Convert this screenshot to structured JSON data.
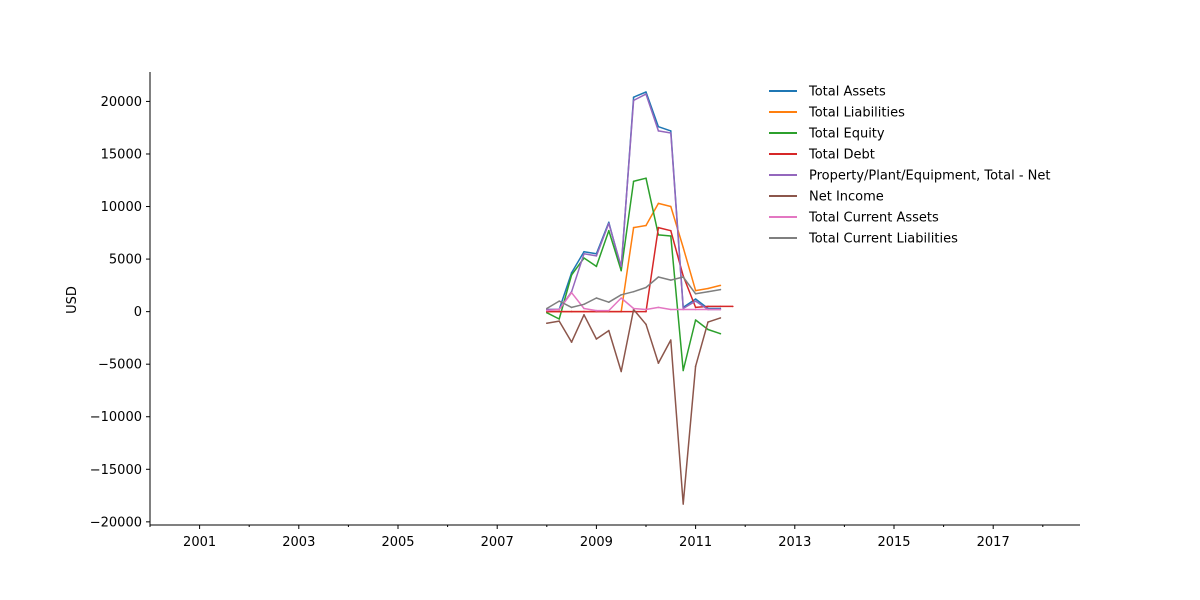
{
  "chart_data": {
    "type": "line",
    "title": "",
    "xlabel": "",
    "ylabel": "USD",
    "xlim": [
      2000.0,
      2018.75
    ],
    "ylim": [
      -20300,
      22800
    ],
    "x_ticks": [
      2001,
      2003,
      2005,
      2007,
      2009,
      2011,
      2013,
      2015,
      2017
    ],
    "y_ticks": [
      -20000,
      -15000,
      -10000,
      -5000,
      0,
      5000,
      10000,
      15000,
      20000
    ],
    "grid": false,
    "legend_position": "top-right",
    "series": [
      {
        "name": "Total Assets",
        "color": "#1f77b4",
        "x": [
          2008.0,
          2008.25,
          2008.5,
          2008.75,
          2009.0,
          2009.25,
          2009.5,
          2009.75,
          2010.0,
          2010.25,
          2010.5,
          2010.75,
          2011.0,
          2011.25,
          2011.5
        ],
        "y": [
          200,
          200,
          3700,
          5700,
          5500,
          8500,
          4100,
          20400,
          20900,
          17600,
          17200,
          400,
          1200,
          300,
          300
        ]
      },
      {
        "name": "Total Liabilities",
        "color": "#ff7f0e",
        "x": [
          2008.0,
          2008.25,
          2008.5,
          2008.75,
          2009.0,
          2009.25,
          2009.5,
          2009.75,
          2010.0,
          2010.25,
          2010.5,
          2010.75,
          2011.0,
          2011.25,
          2011.5
        ],
        "y": [
          0,
          0,
          0,
          0,
          0,
          0,
          0,
          8000,
          8200,
          10300,
          10000,
          6100,
          2000,
          2200,
          2500
        ]
      },
      {
        "name": "Total Equity",
        "color": "#2ca02c",
        "x": [
          2008.0,
          2008.25,
          2008.5,
          2008.75,
          2009.0,
          2009.25,
          2009.5,
          2009.75,
          2010.0,
          2010.25,
          2010.5,
          2010.75,
          2011.0,
          2011.25,
          2011.5
        ],
        "y": [
          -100,
          -700,
          3500,
          5100,
          4300,
          7700,
          3900,
          12400,
          12700,
          7300,
          7200,
          -5600,
          -800,
          -1700,
          -2100
        ]
      },
      {
        "name": "Total Debt",
        "color": "#d62728",
        "x": [
          2008.0,
          2008.25,
          2008.5,
          2008.75,
          2009.0,
          2009.25,
          2009.5,
          2009.75,
          2010.0,
          2010.25,
          2010.5,
          2010.75,
          2011.0,
          2011.25,
          2011.5,
          2011.75
        ],
        "y": [
          0,
          0,
          0,
          0,
          0,
          0,
          0,
          0,
          0,
          8000,
          7700,
          3400,
          400,
          500,
          500,
          500
        ]
      },
      {
        "name": "Property/Plant/Equipment, Total - Net",
        "color": "#9467bd",
        "x": [
          2008.0,
          2008.25,
          2008.5,
          2008.75,
          2009.0,
          2009.25,
          2009.5,
          2009.75,
          2010.0,
          2010.25,
          2010.5,
          2010.75,
          2011.0,
          2011.25,
          2011.5
        ],
        "y": [
          200,
          200,
          1900,
          5500,
          5300,
          8400,
          4300,
          20100,
          20700,
          17200,
          17000,
          300,
          1000,
          200,
          200
        ]
      },
      {
        "name": "Net Income",
        "color": "#8c564b",
        "x": [
          2008.0,
          2008.25,
          2008.5,
          2008.75,
          2009.0,
          2009.25,
          2009.5,
          2009.75,
          2010.0,
          2010.25,
          2010.5,
          2010.75,
          2011.0,
          2011.25,
          2011.5
        ],
        "y": [
          -1100,
          -900,
          -2900,
          -300,
          -2600,
          -1800,
          -5700,
          200,
          -1200,
          -4900,
          -2700,
          -18300,
          -5200,
          -1000,
          -600
        ]
      },
      {
        "name": "Total Current Assets",
        "color": "#e377c2",
        "x": [
          2008.0,
          2008.25,
          2008.5,
          2008.75,
          2009.0,
          2009.25,
          2009.5,
          2009.75,
          2010.0,
          2010.25,
          2010.5,
          2010.75,
          2011.0,
          2011.25,
          2011.5
        ],
        "y": [
          100,
          200,
          1800,
          300,
          100,
          100,
          1300,
          300,
          200,
          400,
          200,
          200,
          200,
          200,
          200
        ]
      },
      {
        "name": "Total Current Liabilities",
        "color": "#7f7f7f",
        "x": [
          2008.0,
          2008.25,
          2008.5,
          2008.75,
          2009.0,
          2009.25,
          2009.5,
          2009.75,
          2010.0,
          2010.25,
          2010.5,
          2010.75,
          2011.0,
          2011.25,
          2011.5
        ],
        "y": [
          300,
          1000,
          400,
          700,
          1300,
          900,
          1600,
          1900,
          2300,
          3300,
          3000,
          3300,
          1700,
          1900,
          2100
        ]
      }
    ]
  }
}
